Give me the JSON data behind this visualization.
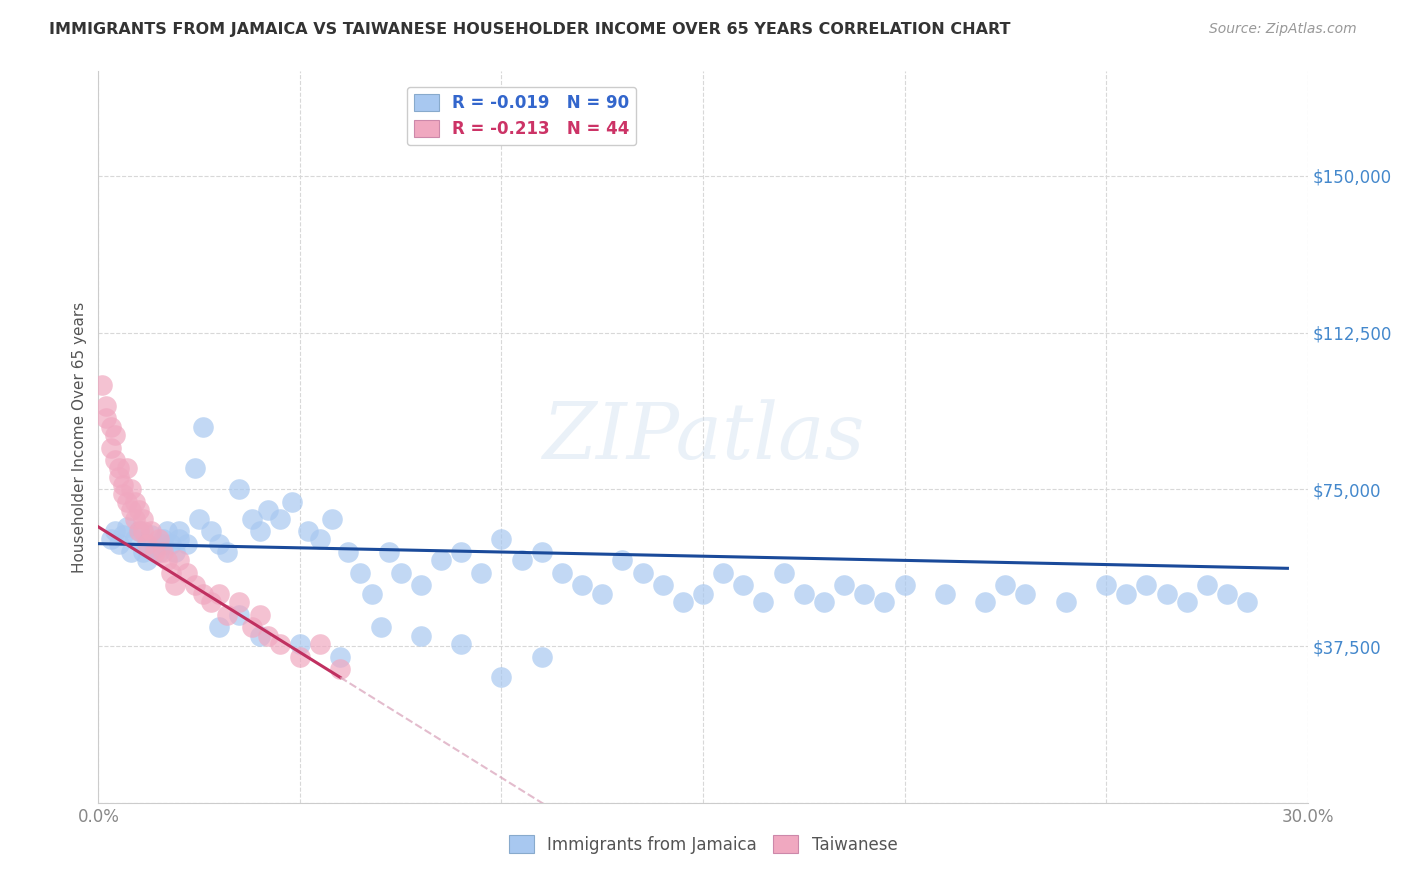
{
  "title": "IMMIGRANTS FROM JAMAICA VS TAIWANESE HOUSEHOLDER INCOME OVER 65 YEARS CORRELATION CHART",
  "source": "Source: ZipAtlas.com",
  "ylabel": "Householder Income Over 65 years",
  "xlim": [
    0.0,
    0.3
  ],
  "ylim": [
    0,
    175000
  ],
  "watermark": "ZIPatlas",
  "blue_color": "#a8c8f0",
  "pink_color": "#f0a8c0",
  "blue_line_color": "#1a4a9a",
  "pink_line_color": "#c03060",
  "pink_dash_color": "#d8a0b8",
  "tick_color": "#4488cc",
  "grid_color": "#d8d8d8",
  "jamaica_x": [
    0.003,
    0.004,
    0.005,
    0.006,
    0.007,
    0.008,
    0.009,
    0.01,
    0.011,
    0.012,
    0.013,
    0.014,
    0.015,
    0.016,
    0.017,
    0.018,
    0.019,
    0.02,
    0.022,
    0.024,
    0.026,
    0.028,
    0.03,
    0.032,
    0.035,
    0.038,
    0.04,
    0.042,
    0.045,
    0.048,
    0.052,
    0.055,
    0.058,
    0.062,
    0.065,
    0.068,
    0.072,
    0.075,
    0.08,
    0.085,
    0.09,
    0.095,
    0.1,
    0.105,
    0.11,
    0.115,
    0.12,
    0.125,
    0.13,
    0.135,
    0.14,
    0.145,
    0.15,
    0.155,
    0.16,
    0.165,
    0.17,
    0.175,
    0.18,
    0.185,
    0.19,
    0.195,
    0.2,
    0.21,
    0.22,
    0.225,
    0.23,
    0.24,
    0.25,
    0.255,
    0.26,
    0.265,
    0.27,
    0.275,
    0.28,
    0.285,
    0.012,
    0.016,
    0.02,
    0.025,
    0.03,
    0.035,
    0.04,
    0.05,
    0.06,
    0.07,
    0.08,
    0.09,
    0.1,
    0.11
  ],
  "jamaica_y": [
    63000,
    65000,
    62000,
    64000,
    66000,
    60000,
    63000,
    65000,
    60000,
    62000,
    64000,
    61000,
    60000,
    63000,
    65000,
    62000,
    60000,
    63000,
    62000,
    80000,
    90000,
    65000,
    62000,
    60000,
    75000,
    68000,
    65000,
    70000,
    68000,
    72000,
    65000,
    63000,
    68000,
    60000,
    55000,
    50000,
    60000,
    55000,
    52000,
    58000,
    60000,
    55000,
    63000,
    58000,
    60000,
    55000,
    52000,
    50000,
    58000,
    55000,
    52000,
    48000,
    50000,
    55000,
    52000,
    48000,
    55000,
    50000,
    48000,
    52000,
    50000,
    48000,
    52000,
    50000,
    48000,
    52000,
    50000,
    48000,
    52000,
    50000,
    52000,
    50000,
    48000,
    52000,
    50000,
    48000,
    58000,
    62000,
    65000,
    68000,
    42000,
    45000,
    40000,
    38000,
    35000,
    42000,
    40000,
    38000,
    30000,
    35000
  ],
  "taiwanese_x": [
    0.001,
    0.002,
    0.002,
    0.003,
    0.003,
    0.004,
    0.004,
    0.005,
    0.005,
    0.006,
    0.006,
    0.007,
    0.007,
    0.008,
    0.008,
    0.009,
    0.009,
    0.01,
    0.01,
    0.011,
    0.011,
    0.012,
    0.013,
    0.014,
    0.015,
    0.016,
    0.017,
    0.018,
    0.019,
    0.02,
    0.022,
    0.024,
    0.026,
    0.028,
    0.03,
    0.032,
    0.035,
    0.038,
    0.04,
    0.042,
    0.045,
    0.05,
    0.055,
    0.06
  ],
  "taiwanese_y": [
    100000,
    95000,
    92000,
    85000,
    90000,
    82000,
    88000,
    80000,
    78000,
    76000,
    74000,
    72000,
    80000,
    70000,
    75000,
    68000,
    72000,
    65000,
    70000,
    68000,
    65000,
    62000,
    65000,
    60000,
    63000,
    60000,
    58000,
    55000,
    52000,
    58000,
    55000,
    52000,
    50000,
    48000,
    50000,
    45000,
    48000,
    42000,
    45000,
    40000,
    38000,
    35000,
    38000,
    32000
  ]
}
